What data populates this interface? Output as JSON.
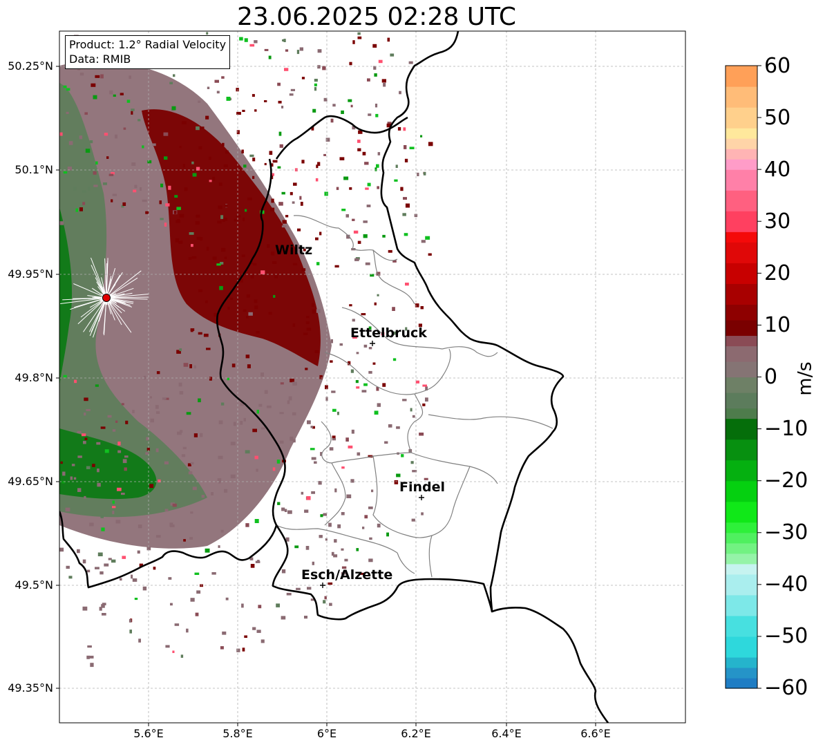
{
  "title": "23.06.2025 02:28 UTC",
  "info": {
    "product": "Product: 1.2° Radial Velocity",
    "source": "Data: RMIB"
  },
  "axes": {
    "lon_range": [
      5.4,
      6.8
    ],
    "lat_range": [
      49.3,
      50.3
    ],
    "lat_ticks": [
      {
        "value": 50.25,
        "label": "50.25°N"
      },
      {
        "value": 50.1,
        "label": "50.1°N"
      },
      {
        "value": 49.95,
        "label": "49.95°N"
      },
      {
        "value": 49.8,
        "label": "49.8°N"
      },
      {
        "value": 49.65,
        "label": "49.65°N"
      },
      {
        "value": 49.5,
        "label": "49.5°N"
      },
      {
        "value": 49.35,
        "label": "49.35°N"
      }
    ],
    "lon_ticks": [
      {
        "value": 5.6,
        "label": "5.6°E"
      },
      {
        "value": 5.8,
        "label": "5.8°E"
      },
      {
        "value": 6.0,
        "label": "6°E"
      },
      {
        "value": 6.2,
        "label": "6.2°E"
      },
      {
        "value": 6.4,
        "label": "6.4°E"
      },
      {
        "value": 6.6,
        "label": "6.6°E"
      }
    ],
    "grid": true
  },
  "cities": [
    {
      "name": "Wiltz",
      "lon": 5.95,
      "lat": 49.97
    },
    {
      "name": "Ettelbruck",
      "lon": 6.1,
      "lat": 49.85
    },
    {
      "name": "Findel",
      "lon": 6.21,
      "lat": 49.63
    },
    {
      "name": "Esch/Alzette",
      "lon": 5.99,
      "lat": 49.5
    }
  ],
  "radar_site": {
    "lon": 5.505,
    "lat": 49.915,
    "color": "#e00000"
  },
  "colorbar": {
    "label": "m/s",
    "min": -60,
    "max": 60,
    "ticks": [
      {
        "value": 60,
        "label": "60"
      },
      {
        "value": 50,
        "label": "50"
      },
      {
        "value": 40,
        "label": "40"
      },
      {
        "value": 30,
        "label": "30"
      },
      {
        "value": 20,
        "label": "20"
      },
      {
        "value": 10,
        "label": "10"
      },
      {
        "value": 0,
        "label": "0"
      },
      {
        "value": -10,
        "label": "−10"
      },
      {
        "value": -20,
        "label": "−20"
      },
      {
        "value": -30,
        "label": "−30"
      },
      {
        "value": -40,
        "label": "−40"
      },
      {
        "value": -50,
        "label": "−50"
      },
      {
        "value": -60,
        "label": "−60"
      }
    ],
    "stops": [
      {
        "from": -60,
        "to": -58,
        "color": "#1f7dc4"
      },
      {
        "from": -58,
        "to": -56,
        "color": "#2594c8"
      },
      {
        "from": -56,
        "to": -54,
        "color": "#25b4cc"
      },
      {
        "from": -54,
        "to": -50,
        "color": "#2ed8dc"
      },
      {
        "from": -50,
        "to": -46,
        "color": "#47e0e0"
      },
      {
        "from": -46,
        "to": -42,
        "color": "#7de8e8"
      },
      {
        "from": -42,
        "to": -38,
        "color": "#aaeeee"
      },
      {
        "from": -38,
        "to": -36,
        "color": "#c6f3f0"
      },
      {
        "from": -36,
        "to": -34,
        "color": "#95f3a8"
      },
      {
        "from": -34,
        "to": -32,
        "color": "#72f282"
      },
      {
        "from": -32,
        "to": -30,
        "color": "#4ff05f"
      },
      {
        "from": -30,
        "to": -28,
        "color": "#2ef03a"
      },
      {
        "from": -28,
        "to": -24,
        "color": "#10e818"
      },
      {
        "from": -24,
        "to": -20,
        "color": "#05d010"
      },
      {
        "from": -20,
        "to": -16,
        "color": "#05b010"
      },
      {
        "from": -16,
        "to": -12,
        "color": "#079010"
      },
      {
        "from": -12,
        "to": -8,
        "color": "#056e0a"
      },
      {
        "from": -8,
        "to": -6,
        "color": "#4e7c4c"
      },
      {
        "from": -6,
        "to": -3,
        "color": "#5c7c5c"
      },
      {
        "from": -3,
        "to": 0,
        "color": "#6e8066"
      },
      {
        "from": 0,
        "to": 3,
        "color": "#857474"
      },
      {
        "from": 3,
        "to": 6,
        "color": "#8c6a70"
      },
      {
        "from": 6,
        "to": 8,
        "color": "#8a4b55"
      },
      {
        "from": 8,
        "to": 11,
        "color": "#7a0000"
      },
      {
        "from": 11,
        "to": 14,
        "color": "#8e0000"
      },
      {
        "from": 14,
        "to": 18,
        "color": "#a80000"
      },
      {
        "from": 18,
        "to": 22,
        "color": "#c80000"
      },
      {
        "from": 22,
        "to": 26,
        "color": "#e00808"
      },
      {
        "from": 26,
        "to": 28,
        "color": "#f40a0a"
      },
      {
        "from": 28,
        "to": 32,
        "color": "#ff4060"
      },
      {
        "from": 32,
        "to": 36,
        "color": "#ff6080"
      },
      {
        "from": 36,
        "to": 40,
        "color": "#ff80a8"
      },
      {
        "from": 40,
        "to": 42,
        "color": "#ff9cc8"
      },
      {
        "from": 42,
        "to": 44,
        "color": "#ffb4b4"
      },
      {
        "from": 44,
        "to": 46,
        "color": "#ffd4a8"
      },
      {
        "from": 46,
        "to": 48,
        "color": "#ffe89c"
      },
      {
        "from": 48,
        "to": 52,
        "color": "#ffd08c"
      },
      {
        "from": 52,
        "to": 56,
        "color": "#ffbc78"
      },
      {
        "from": 56,
        "to": 60,
        "color": "#ffa058"
      }
    ]
  }
}
